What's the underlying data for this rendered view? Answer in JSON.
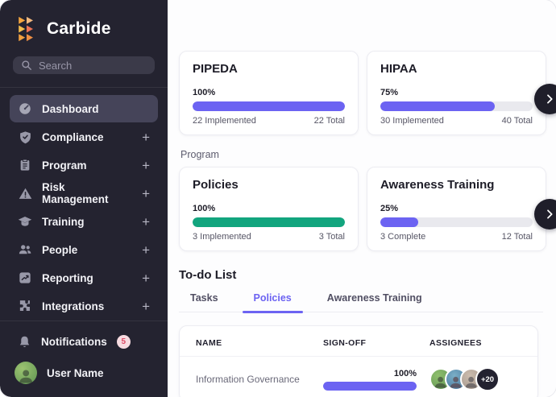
{
  "app": {
    "name": "Carbide"
  },
  "colors": {
    "purple": "#6C63F2",
    "green": "#12A57E",
    "sidebar_bg": "#242330",
    "badge_red": "#DD4A66",
    "dark_button": "#1F1E2A"
  },
  "sidebar": {
    "search_placeholder": "Search",
    "items": [
      {
        "label": "Dashboard"
      },
      {
        "label": "Compliance",
        "expand": "+"
      },
      {
        "label": "Program",
        "expand": "+"
      },
      {
        "label": "Risk Management",
        "expand": "+"
      },
      {
        "label": "Training",
        "expand": "+"
      },
      {
        "label": "People",
        "expand": "+"
      },
      {
        "label": "Reporting",
        "expand": "+"
      },
      {
        "label": "Integrations",
        "expand": "+"
      }
    ],
    "notifications": {
      "label": "Notifications",
      "badge": "5"
    },
    "user": {
      "name": "User Name"
    }
  },
  "main": {
    "frameworks": [
      {
        "title": "PIPEDA",
        "percent": 100,
        "percent_label": "100%",
        "implemented": "22 Implemented",
        "total": "22 Total"
      },
      {
        "title": "HIPAA",
        "percent": 75,
        "percent_label": "75%",
        "implemented": "30 Implemented",
        "total": "40 Total"
      }
    ],
    "program_label": "Program",
    "program_cards": [
      {
        "title": "Policies",
        "percent": 100,
        "percent_label": "100%",
        "implemented": "3 Implemented",
        "total": "3 Total"
      },
      {
        "title": "Awareness Training",
        "percent": 25,
        "percent_label": "25%",
        "implemented": "3 Complete",
        "total": "12 Total"
      }
    ],
    "todo": {
      "title": "To-do List",
      "tabs": [
        {
          "label": "Tasks"
        },
        {
          "label": "Policies"
        },
        {
          "label": "Awareness Training"
        }
      ],
      "table": {
        "headers": [
          "NAME",
          "SIGN-OFF",
          "ASSIGNEES"
        ],
        "rows": [
          {
            "name": "Information Governance",
            "signoff_percent": 100,
            "signoff_label": "100%",
            "overflow_badge": "+20"
          }
        ]
      }
    }
  }
}
